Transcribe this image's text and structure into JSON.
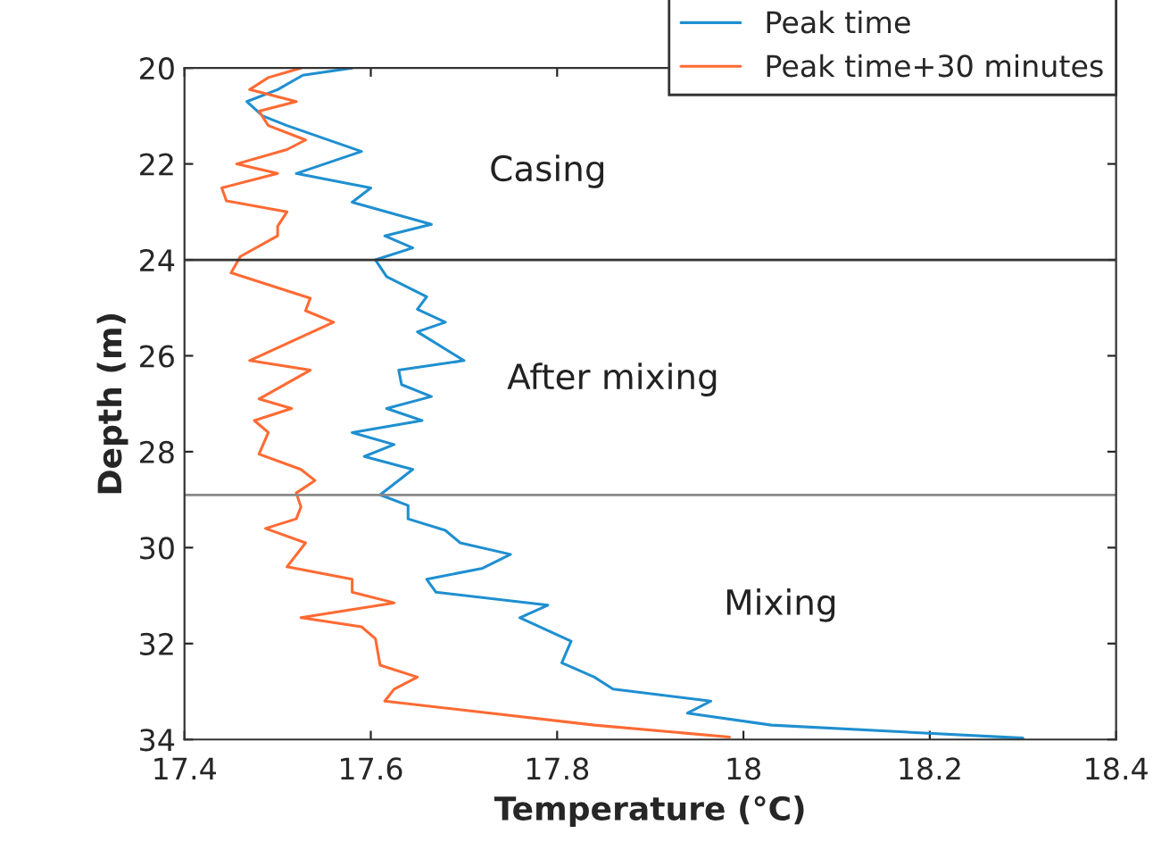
{
  "chart_data": {
    "type": "line",
    "xlabel": "Temperature (°C)",
    "ylabel": "Depth (m)",
    "xlim": [
      17.4,
      18.4
    ],
    "xticks": [
      17.4,
      17.6,
      17.8,
      18,
      18.2,
      18.4
    ],
    "ylim": [
      34,
      20
    ],
    "yticks": [
      20,
      22,
      24,
      26,
      28,
      30,
      32,
      34
    ],
    "grid": false,
    "legend": "top right",
    "marker": "none",
    "line_style": "solid",
    "series": [
      {
        "name": "Peak time",
        "color": "#1f8fd0",
        "x": [
          17.58,
          17.527,
          17.5,
          17.467,
          17.484,
          17.51,
          17.59,
          17.52,
          17.6,
          17.58,
          17.665,
          17.615,
          17.645,
          17.605,
          17.617,
          17.66,
          17.65,
          17.68,
          17.65,
          17.7,
          17.63,
          17.633,
          17.665,
          17.617,
          17.655,
          17.58,
          17.625,
          17.593,
          17.645,
          17.61,
          17.64,
          17.64,
          17.68,
          17.696,
          17.75,
          17.72,
          17.66,
          17.67,
          17.79,
          17.76,
          17.815,
          17.805,
          17.84,
          17.86,
          17.965,
          17.94,
          18.03,
          18.3
        ],
        "values": [
          20.0,
          20.15,
          20.45,
          20.7,
          21.0,
          21.2,
          21.74,
          22.2,
          22.5,
          22.8,
          23.26,
          23.5,
          23.75,
          24.0,
          24.35,
          24.77,
          25.03,
          25.3,
          25.5,
          26.1,
          26.3,
          26.6,
          26.85,
          27.1,
          27.35,
          27.6,
          27.85,
          28.1,
          28.37,
          28.9,
          29.12,
          29.4,
          29.64,
          29.9,
          30.14,
          30.43,
          30.66,
          30.93,
          31.2,
          31.46,
          31.95,
          32.4,
          32.7,
          32.95,
          33.2,
          33.45,
          33.7,
          33.97
        ]
      },
      {
        "name": "Peak time+30 minutes",
        "color": "#ff6a33",
        "x": [
          17.525,
          17.49,
          17.47,
          17.52,
          17.48,
          17.49,
          17.53,
          17.51,
          17.456,
          17.5,
          17.44,
          17.445,
          17.51,
          17.5,
          17.5,
          17.46,
          17.45,
          17.535,
          17.53,
          17.56,
          17.47,
          17.535,
          17.48,
          17.515,
          17.475,
          17.49,
          17.48,
          17.525,
          17.54,
          17.52,
          17.525,
          17.52,
          17.487,
          17.53,
          17.51,
          17.58,
          17.58,
          17.625,
          17.525,
          17.59,
          17.605,
          17.61,
          17.65,
          17.625,
          17.615,
          17.84,
          17.985
        ],
        "values": [
          20.0,
          20.2,
          20.45,
          20.7,
          20.9,
          21.2,
          21.5,
          21.7,
          22.0,
          22.2,
          22.5,
          22.77,
          23.0,
          23.3,
          23.5,
          23.93,
          24.27,
          24.8,
          25.06,
          25.3,
          26.1,
          26.3,
          26.9,
          27.1,
          27.35,
          27.6,
          28.05,
          28.37,
          28.6,
          28.86,
          29.15,
          29.4,
          29.6,
          29.9,
          30.4,
          30.66,
          30.93,
          31.15,
          31.46,
          31.65,
          31.9,
          32.45,
          32.7,
          32.95,
          33.2,
          33.7,
          33.95
        ]
      }
    ],
    "ref_lines": [
      {
        "axis": "y",
        "value": 24,
        "color": "#333333"
      },
      {
        "axis": "y",
        "value": 28.9,
        "color": "#888888"
      }
    ],
    "annotations": [
      "Casing",
      "After mixing",
      "Mixing"
    ]
  }
}
